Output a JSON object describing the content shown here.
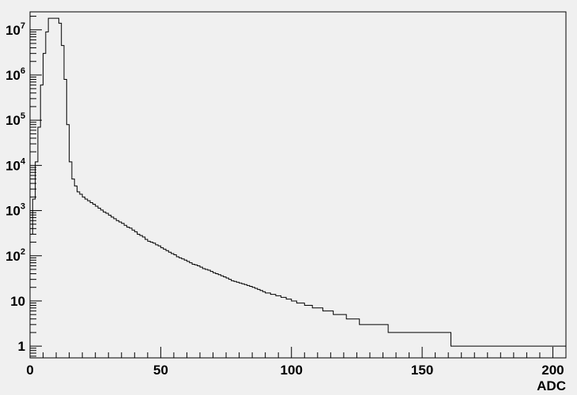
{
  "chart_data": {
    "type": "histogram",
    "title": "",
    "xlabel": "ADC",
    "ylabel": "",
    "x_scale": "linear",
    "y_scale": "log",
    "xlim": [
      0,
      205
    ],
    "ylim": [
      0.55,
      25000000
    ],
    "bin_width": 1,
    "grid": false,
    "legend": "none",
    "x_ticks": [
      0,
      50,
      100,
      150,
      200
    ],
    "x_tick_labels": [
      "0",
      "50",
      "100",
      "150",
      "200"
    ],
    "y_ticks": [
      1,
      10,
      100,
      1000,
      10000,
      100000,
      1000000,
      10000000
    ],
    "y_tick_labels": [
      {
        "base": "1",
        "exp": ""
      },
      {
        "base": "10",
        "exp": ""
      },
      {
        "base": "10",
        "exp": "2"
      },
      {
        "base": "10",
        "exp": "3"
      },
      {
        "base": "10",
        "exp": "4"
      },
      {
        "base": "10",
        "exp": "5"
      },
      {
        "base": "10",
        "exp": "6"
      },
      {
        "base": "10",
        "exp": "7"
      }
    ],
    "bin_edges_start": 0,
    "counts": [
      300,
      1800,
      12000,
      70000,
      600000,
      3000000,
      9000000,
      18000000,
      18000000,
      18000000,
      18000000,
      14000000,
      4500000,
      800000,
      80000,
      12000,
      5000,
      3500,
      2600,
      2300,
      2000,
      1800,
      1650,
      1500,
      1380,
      1250,
      1130,
      1030,
      930,
      870,
      790,
      720,
      660,
      600,
      560,
      520,
      470,
      430,
      410,
      370,
      340,
      300,
      280,
      260,
      230,
      210,
      200,
      190,
      175,
      165,
      150,
      140,
      130,
      120,
      112,
      105,
      95,
      90,
      85,
      80,
      75,
      70,
      65,
      63,
      60,
      56,
      52,
      50,
      48,
      45,
      42,
      40,
      38,
      36,
      34,
      32,
      30,
      28,
      27,
      26,
      25,
      24,
      23,
      22,
      21,
      20,
      19,
      18,
      17,
      16,
      15,
      15,
      14,
      14,
      13,
      13,
      12,
      12,
      11,
      11,
      10,
      10,
      9,
      9,
      9,
      8,
      8,
      8,
      7,
      7,
      7,
      7,
      6,
      6,
      6,
      6,
      5,
      5,
      5,
      5,
      5,
      4,
      4,
      4,
      4,
      4,
      3,
      3,
      3,
      3,
      3,
      3,
      3,
      3,
      3,
      3,
      3,
      2,
      2,
      2,
      2,
      2,
      2,
      2,
      2,
      2,
      2,
      2,
      2,
      2,
      2,
      2,
      2,
      2,
      2,
      2,
      2,
      2,
      2,
      2,
      2,
      1,
      1,
      1,
      1,
      1,
      1,
      1,
      1,
      1,
      1,
      1,
      1,
      1,
      1,
      1,
      1,
      1,
      1,
      1,
      1,
      1,
      1,
      1,
      1,
      1,
      1,
      1,
      1,
      1,
      1,
      1,
      1,
      1,
      1,
      1,
      1,
      1,
      1,
      1,
      1,
      1,
      1,
      1,
      1
    ]
  },
  "colors": {
    "background": "#f0f0f0",
    "frame": "#000000",
    "histogram_line": "#000000"
  }
}
